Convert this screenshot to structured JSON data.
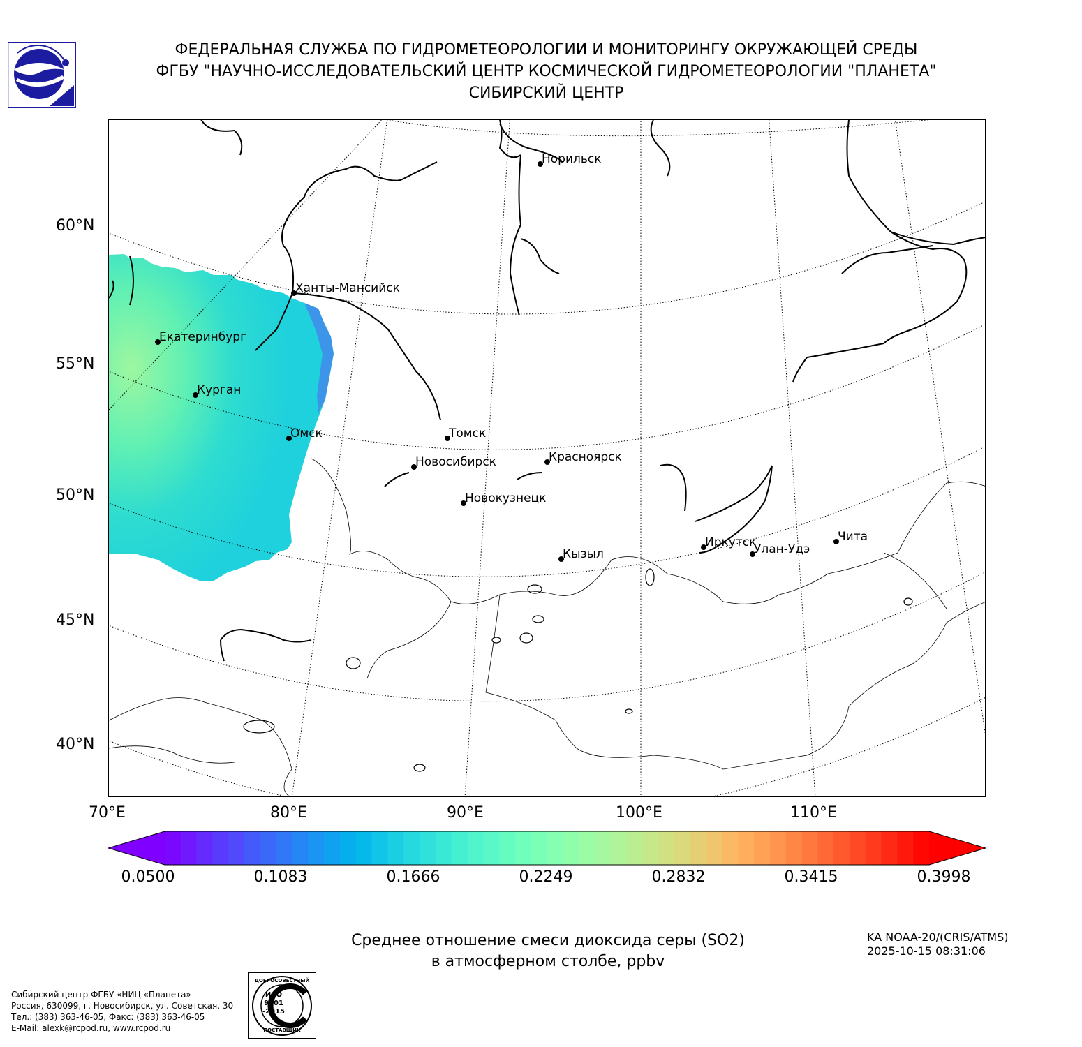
{
  "header": {
    "line1": "ФЕДЕРАЛЬНАЯ СЛУЖБА ПО ГИДРОМЕТЕОРОЛОГИИ И МОНИТОРИНГУ ОКРУЖАЮЩЕЙ СРЕДЫ",
    "line2": "ФГБУ \"НАУЧНО-ИССЛЕДОВАТЕЛЬСКИЙ ЦЕНТР КОСМИЧЕСКОЙ ГИДРОМЕТЕОРОЛОГИИ \"ПЛАНЕТА\"",
    "line3": "СИБИРСКИЙ ЦЕНТР"
  },
  "map": {
    "lat_labels": [
      "60°N",
      "55°N",
      "50°N",
      "45°N",
      "40°N"
    ],
    "lon_labels": [
      "70°E",
      "80°E",
      "90°E",
      "100°E",
      "110°E"
    ],
    "cities": [
      {
        "name": "Норильск"
      },
      {
        "name": "Ханты-Мансийск"
      },
      {
        "name": "Екатеринбург"
      },
      {
        "name": "Курган"
      },
      {
        "name": "Омск"
      },
      {
        "name": "Томск"
      },
      {
        "name": "Новосибирск"
      },
      {
        "name": "Красноярск"
      },
      {
        "name": "Новокузнецк"
      },
      {
        "name": "Кызыл"
      },
      {
        "name": "Иркутск"
      },
      {
        "name": "Улан-Удэ"
      },
      {
        "name": "Чита"
      }
    ],
    "so2_field_color_low": "#1fd6d6",
    "so2_field_color_high": "#8ef7a8"
  },
  "colorbar": {
    "ticks": [
      "0.0500",
      "0.1083",
      "0.1666",
      "0.2249",
      "0.2832",
      "0.3415",
      "0.3998"
    ],
    "colormap": "rainbow",
    "min": 0.05,
    "max": 0.3998
  },
  "title": {
    "line1": "Среднее отношение смеси диоксида серы (SO2)",
    "line2": "в атмосферном столбе, ppbv"
  },
  "satellite": {
    "line1": "KA NOAA-20/(CRIS/ATMS)",
    "line2": "2025-10-15 08:31:06"
  },
  "footer": {
    "line1": "Сибирский центр ФГБУ «НИЦ «Планета»",
    "line2": "Россия, 630099, г. Новосибирск, ул. Советская, 30",
    "line3": "Тел.: (383) 363-46-05, Факс: (383) 363-46-05",
    "line4": "E-Mail: alexk@rcpod.ru, www.rcpod.ru"
  },
  "iso_badge": {
    "top": "ДОБРОСОВЕСТНЫЙ",
    "middle1": "ИСО",
    "middle2": "9001",
    "middle3": "-2015",
    "bottom": "ПОСТАВЩИК"
  }
}
